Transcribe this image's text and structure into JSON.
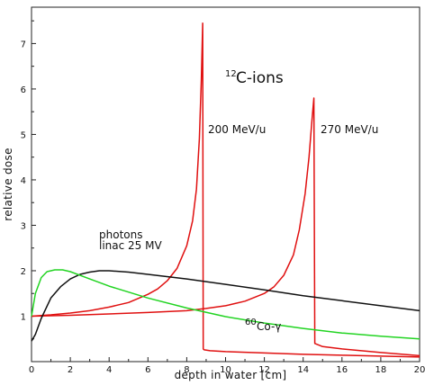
{
  "chart_data": {
    "type": "line",
    "xlabel": "depth in water [cm]",
    "ylabel": "relative dose",
    "xlim": [
      0,
      20
    ],
    "ylim": [
      0,
      7.8
    ],
    "x_ticks": [
      0,
      2,
      4,
      6,
      8,
      10,
      12,
      14,
      16,
      18,
      20
    ],
    "y_ticks": [
      1,
      2,
      3,
      4,
      5,
      6,
      7
    ],
    "grid": false,
    "annotations": {
      "title_mass": "12",
      "title_text": "C-ions",
      "label_200": "200 MeV/u",
      "label_270": "270 MeV/u",
      "photons_line1": "photons",
      "photons_line2": "linac 25 MV",
      "co_mass": "60",
      "co_text": "Co-γ"
    },
    "series": [
      {
        "color": "#e01010",
        "x": [
          0,
          1,
          2,
          3,
          4,
          5,
          6,
          6.5,
          7,
          7.5,
          8,
          8.3,
          8.5,
          8.65,
          8.75,
          8.82,
          8.85,
          8.9,
          9.2,
          10,
          12,
          14,
          16,
          18,
          20
        ],
        "y": [
          1.0,
          1.03,
          1.07,
          1.12,
          1.2,
          1.3,
          1.48,
          1.6,
          1.78,
          2.05,
          2.55,
          3.1,
          3.8,
          4.9,
          6.2,
          7.45,
          0.28,
          0.26,
          0.24,
          0.22,
          0.19,
          0.16,
          0.14,
          0.12,
          0.1
        ]
      },
      {
        "color": "#e01010",
        "x": [
          0,
          2,
          4,
          6,
          8,
          9,
          10,
          11,
          12,
          12.5,
          13,
          13.5,
          13.8,
          14.1,
          14.3,
          14.45,
          14.55,
          14.6,
          15,
          16,
          18,
          20
        ],
        "y": [
          1.0,
          1.02,
          1.05,
          1.08,
          1.12,
          1.17,
          1.23,
          1.33,
          1.5,
          1.65,
          1.9,
          2.35,
          2.9,
          3.7,
          4.5,
          5.3,
          5.8,
          0.4,
          0.33,
          0.28,
          0.2,
          0.13
        ]
      },
      {
        "color": "#111111",
        "x": [
          0,
          0.2,
          0.5,
          1,
          1.5,
          2,
          2.5,
          3,
          3.5,
          4,
          5,
          6,
          8,
          10,
          12,
          14,
          16,
          18,
          20
        ],
        "y": [
          0.45,
          0.6,
          0.95,
          1.4,
          1.65,
          1.82,
          1.92,
          1.97,
          2.0,
          2.0,
          1.97,
          1.92,
          1.82,
          1.7,
          1.58,
          1.45,
          1.34,
          1.23,
          1.12
        ]
      },
      {
        "color": "#22d422",
        "x": [
          0,
          0.2,
          0.5,
          0.8,
          1.2,
          1.6,
          2,
          3,
          4,
          6,
          8,
          10,
          12,
          14,
          16,
          18,
          20
        ],
        "y": [
          1.0,
          1.5,
          1.85,
          1.98,
          2.02,
          2.02,
          1.98,
          1.82,
          1.66,
          1.4,
          1.18,
          0.99,
          0.85,
          0.73,
          0.63,
          0.56,
          0.5
        ]
      }
    ]
  }
}
